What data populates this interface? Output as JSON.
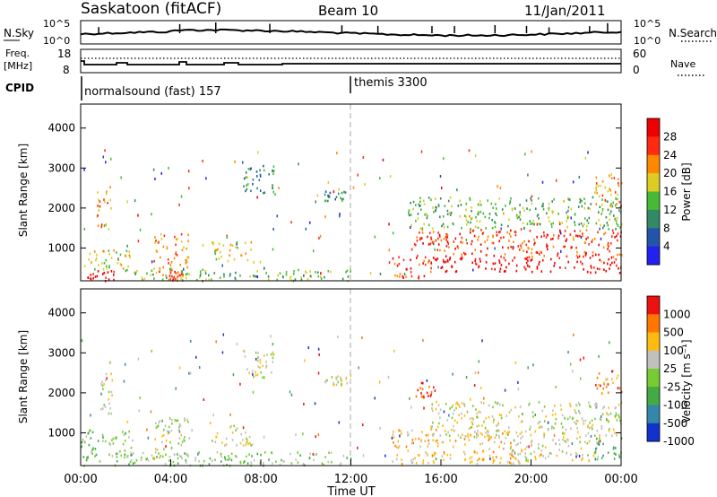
{
  "header": {
    "station": "Saskatoon (fitACF)",
    "beam": "Beam 10",
    "date": "11/Jan/2011"
  },
  "noise_panel": {
    "left_label": "N.Sky",
    "right_label": "N.Search",
    "left_ticks": [
      "10^5",
      "10^0"
    ],
    "right_ticks": [
      "10^5",
      "10^0"
    ]
  },
  "freq_panel": {
    "left_label_1": "Freq.",
    "left_label_2": "[MHz]",
    "right_label": "Nave",
    "left_ticks": [
      "18",
      "8"
    ],
    "right_ticks": [
      "60",
      "0"
    ]
  },
  "cpid_panel": {
    "label": "CPID",
    "programs": [
      {
        "name": "normalsound (fast) 157"
      },
      {
        "name": "themis 3300"
      }
    ]
  },
  "chart_data": [
    {
      "type": "heatmap",
      "name": "power",
      "ylabel": "Slant Range [km]",
      "ylim": [
        180,
        4600
      ],
      "yticks": [
        "1000",
        "2000",
        "3000",
        "4000"
      ],
      "colorbar_label": "Power [dB]",
      "colorbar_ticks": [
        "28",
        "24",
        "20",
        "16",
        "12",
        "8",
        "4"
      ],
      "colors": [
        "#2222ee",
        "#2255aa",
        "#338866",
        "#44bb33",
        "#ddcc22",
        "#ff8800",
        "#ff2a10",
        "#ee0000"
      ],
      "features": [
        {
          "t0": 0.0,
          "t1": 1.5,
          "r0": 200,
          "r1": 450,
          "level": 7
        },
        {
          "t0": 0.1,
          "t1": 2.2,
          "r0": 450,
          "r1": 1000,
          "level": 4
        },
        {
          "t0": 0.7,
          "t1": 1.4,
          "r0": 1500,
          "r1": 2500,
          "level": 5
        },
        {
          "t0": 3.2,
          "t1": 4.8,
          "r0": 400,
          "r1": 1400,
          "level": 5
        },
        {
          "t0": 3.6,
          "t1": 4.6,
          "r0": 200,
          "r1": 450,
          "level": 6
        },
        {
          "t0": 5.8,
          "t1": 7.6,
          "r0": 700,
          "r1": 1200,
          "level": 4
        },
        {
          "t0": 7.2,
          "t1": 8.6,
          "r0": 2400,
          "r1": 3100,
          "level": 2
        },
        {
          "t0": 10.8,
          "t1": 11.8,
          "r0": 2200,
          "r1": 2450,
          "level": 2
        },
        {
          "t0": 2.0,
          "t1": 12.0,
          "r0": 200,
          "r1": 500,
          "level": 3
        },
        {
          "t0": 13.8,
          "t1": 15.6,
          "r0": 250,
          "r1": 800,
          "level": 6
        },
        {
          "t0": 14.8,
          "t1": 24.0,
          "r0": 800,
          "r1": 1500,
          "level": 6
        },
        {
          "t0": 15.5,
          "t1": 24.0,
          "r0": 400,
          "r1": 800,
          "level": 7
        },
        {
          "t0": 14.5,
          "t1": 24.0,
          "r0": 1500,
          "r1": 2300,
          "level": 3
        },
        {
          "t0": 22.8,
          "t1": 24.0,
          "r0": 2000,
          "r1": 2800,
          "level": 5
        }
      ]
    },
    {
      "type": "heatmap",
      "name": "velocity",
      "ylabel": "Slant Range [km]",
      "xlabel": "Time UT",
      "ylim": [
        180,
        4600
      ],
      "yticks": [
        "1000",
        "2000",
        "3000",
        "4000"
      ],
      "xticks": [
        "00:00",
        "04:00",
        "08:00",
        "12:00",
        "16:00",
        "20:00",
        "00:00"
      ],
      "xlim": [
        0,
        24
      ],
      "colorbar_label": "Velocity [m s⁻¹]",
      "colorbar_ticks": [
        "1000",
        "500",
        "100",
        "25",
        "-25",
        "-100",
        "-500",
        "-1000"
      ],
      "colors": [
        "#1133cc",
        "#3388aa",
        "#44aa44",
        "#77cc33",
        "#c0c0bc",
        "#ffbb11",
        "#ff7700",
        "#ee1111"
      ],
      "features": [
        {
          "t0": 0.0,
          "t1": 2.3,
          "r0": 200,
          "r1": 1100,
          "level": 3
        },
        {
          "t0": 0.8,
          "t1": 1.4,
          "r0": 1500,
          "r1": 2500,
          "level": 4
        },
        {
          "t0": 2.0,
          "t1": 12.0,
          "r0": 200,
          "r1": 550,
          "level": 3
        },
        {
          "t0": 3.2,
          "t1": 4.8,
          "r0": 400,
          "r1": 1400,
          "level": 4
        },
        {
          "t0": 5.8,
          "t1": 7.6,
          "r0": 700,
          "r1": 1200,
          "level": 4
        },
        {
          "t0": 7.2,
          "t1": 8.6,
          "r0": 2400,
          "r1": 3100,
          "level": 4
        },
        {
          "t0": 10.8,
          "t1": 11.8,
          "r0": 2200,
          "r1": 2450,
          "level": 4
        },
        {
          "t0": 13.8,
          "t1": 19.5,
          "r0": 250,
          "r1": 1100,
          "level": 5
        },
        {
          "t0": 15.5,
          "t1": 24.0,
          "r0": 900,
          "r1": 1800,
          "level": 4
        },
        {
          "t0": 19.0,
          "t1": 23.0,
          "r0": 300,
          "r1": 900,
          "level": 4
        },
        {
          "t0": 22.8,
          "t1": 24.0,
          "r0": 300,
          "r1": 900,
          "level": 2
        },
        {
          "t0": 14.8,
          "t1": 15.8,
          "r0": 1900,
          "r1": 2300,
          "level": 7
        },
        {
          "t0": 22.8,
          "t1": 24.0,
          "r0": 2000,
          "r1": 2600,
          "level": 6
        }
      ]
    }
  ]
}
